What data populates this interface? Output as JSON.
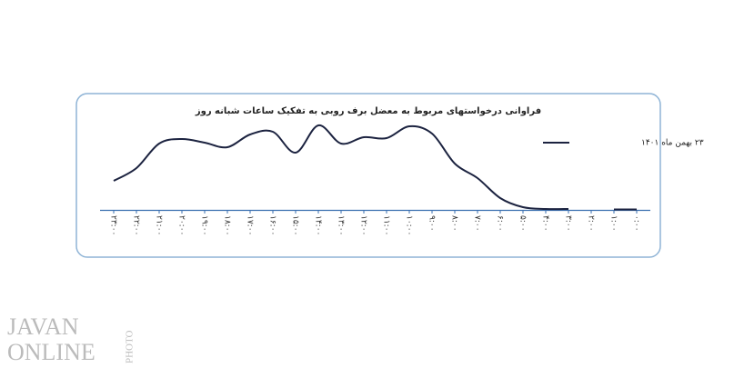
{
  "chart_data": {
    "type": "line",
    "title": "فراوانی درخواستهای مربوط به معضل برف روبی به تفکیک ساعات شبانه روز",
    "categories": [
      "۲۳:۰۰",
      "۲۲:۰۰",
      "۲۱:۰۰",
      "۲۰:۰۰",
      "۱۹:۰۰",
      "۱۸:۰۰",
      "۱۷:۰۰",
      "۱۶:۰۰",
      "۱۵:۰۰",
      "۱۴:۰۰",
      "۱۳:۰۰",
      "۱۲:۰۰",
      "۱۱:۰۰",
      "۱۰:۰۰",
      "۹:۰۰",
      "۸:۰۰",
      "۷:۰۰",
      "۶:۰۰",
      "۵:۰۰",
      "۴:۰۰",
      "۳:۰۰",
      "۲:۰۰",
      "۱:۰۰",
      "۰:۰۰"
    ],
    "series": [
      {
        "name": "۲۳ بهمن ماه ۱۴۰۱",
        "color": "#1c2340",
        "values": [
          32,
          46,
          73,
          78,
          74,
          69,
          83,
          86,
          63,
          93,
          73,
          80,
          79,
          92,
          84,
          51,
          35,
          13,
          3,
          1,
          1,
          null,
          0.5,
          0.5
        ]
      }
    ],
    "legend": "right"
  },
  "watermark": {
    "line1": "JAVAN",
    "line2": "ONLINE",
    "side": "PHOTO"
  }
}
